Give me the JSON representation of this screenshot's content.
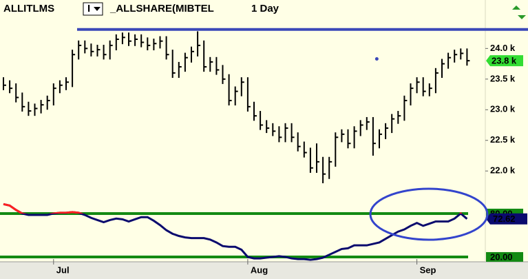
{
  "header": {
    "symbol": "ALLITLMS",
    "button": "I",
    "instrument": "_ALLSHARE(MIBTEL",
    "period": "1 Day"
  },
  "chart_data": [
    {
      "type": "hlc",
      "color": "#000000",
      "categories": [
        null,
        null,
        null,
        null,
        null,
        null,
        null,
        null,
        "Jul",
        null,
        null,
        null,
        null,
        null,
        null,
        null,
        null,
        null,
        null,
        null,
        null,
        null,
        null,
        null,
        null,
        null,
        null,
        null,
        null,
        null,
        null,
        null,
        null,
        null,
        null,
        null,
        null,
        null,
        null,
        "Aug",
        null,
        null,
        null,
        null,
        null,
        null,
        null,
        null,
        null,
        null,
        null,
        null,
        null,
        null,
        null,
        null,
        null,
        null,
        null,
        null,
        null,
        null,
        null,
        null,
        null,
        null,
        "Sep",
        null,
        null,
        null,
        null,
        null,
        null,
        null,
        null
      ],
      "high": [
        23.53,
        23.48,
        23.43,
        23.28,
        23.13,
        23.1,
        23.16,
        23.23,
        23.43,
        23.48,
        23.53,
        23.98,
        24.13,
        24.13,
        24.08,
        24.06,
        24.06,
        24.13,
        24.23,
        24.26,
        24.26,
        24.23,
        24.23,
        24.18,
        24.16,
        24.2,
        24.2,
        23.98,
        23.78,
        23.93,
        24.03,
        24.28,
        24.13,
        23.86,
        23.86,
        23.73,
        23.58,
        23.38,
        23.53,
        23.53,
        23.13,
        22.98,
        22.83,
        22.78,
        22.73,
        22.78,
        22.78,
        22.63,
        22.48,
        22.38,
        22.45,
        22.23,
        22.23,
        22.63,
        22.68,
        22.68,
        22.73,
        22.83,
        22.88,
        22.88,
        22.68,
        22.78,
        22.93,
        22.98,
        23.23,
        23.43,
        23.53,
        23.53,
        23.43,
        23.68,
        23.83,
        23.93,
        23.98,
        24.0,
        24.0
      ],
      "low": [
        23.32,
        23.27,
        23.12,
        22.97,
        22.9,
        22.9,
        22.94,
        23.0,
        23.07,
        23.27,
        23.32,
        23.37,
        23.82,
        23.92,
        23.87,
        23.87,
        23.82,
        23.82,
        23.97,
        24.07,
        24.04,
        24.04,
        24.02,
        23.97,
        23.97,
        24.0,
        23.82,
        23.52,
        23.52,
        23.62,
        23.77,
        23.87,
        23.62,
        23.62,
        23.57,
        23.42,
        23.07,
        23.07,
        23.22,
        22.97,
        22.82,
        22.67,
        22.62,
        22.57,
        22.47,
        22.47,
        22.47,
        22.32,
        22.22,
        21.97,
        21.97,
        21.8,
        21.87,
        22.07,
        22.47,
        22.37,
        22.37,
        22.57,
        22.67,
        22.25,
        22.37,
        22.52,
        22.62,
        22.77,
        22.82,
        23.07,
        23.27,
        23.22,
        23.22,
        23.27,
        23.52,
        23.67,
        23.77,
        23.82,
        23.72
      ],
      "close": [
        23.4,
        23.35,
        23.2,
        23.05,
        22.98,
        23.02,
        23.08,
        23.15,
        23.35,
        23.4,
        23.45,
        23.9,
        24.05,
        24.0,
        23.95,
        23.98,
        23.9,
        24.05,
        24.15,
        24.18,
        24.12,
        24.15,
        24.1,
        24.05,
        24.08,
        24.12,
        23.9,
        23.6,
        23.7,
        23.85,
        23.95,
        24.05,
        23.7,
        23.78,
        23.65,
        23.5,
        23.15,
        23.3,
        23.45,
        23.05,
        22.9,
        22.75,
        22.7,
        22.65,
        22.55,
        22.7,
        22.55,
        22.4,
        22.3,
        22.05,
        22.15,
        21.95,
        22.15,
        22.55,
        22.6,
        22.45,
        22.65,
        22.75,
        22.8,
        22.45,
        22.6,
        22.7,
        22.85,
        22.9,
        23.15,
        23.35,
        23.45,
        23.3,
        23.35,
        23.6,
        23.75,
        23.85,
        23.9,
        23.92,
        23.8
      ],
      "ylim": [
        21.53,
        24.51
      ],
      "yticks": [
        {
          "value": 24,
          "label": "24.0 k"
        },
        {
          "value": 23.5,
          "label": "23.5 k"
        },
        {
          "value": 23,
          "label": "23.0 k"
        },
        {
          "value": 22.5,
          "label": "22.5 k"
        },
        {
          "value": 22,
          "label": "22.0 k"
        }
      ],
      "last_label": {
        "value": 23.8,
        "label": "23.8 k",
        "color": "#33dd33"
      },
      "hline": {
        "value": 24.31,
        "color": "#3b48b8"
      },
      "marker": {
        "x": 59.6,
        "y": 23.83,
        "color": "#3b48b8"
      }
    },
    {
      "type": "line",
      "color": "#0a0a6e",
      "high_color": "#ff2020",
      "values": [
        93,
        91,
        85,
        80,
        78,
        78,
        78,
        78,
        80,
        81,
        81,
        82,
        81,
        78,
        74,
        71,
        68,
        71,
        73,
        72,
        69,
        72,
        75,
        75,
        70,
        64,
        57,
        52,
        49,
        47,
        46,
        46,
        46,
        44,
        40,
        35,
        34,
        34,
        30,
        20,
        18,
        18,
        19,
        20,
        21,
        20,
        18,
        17,
        17,
        16,
        17,
        19,
        23,
        27,
        31,
        32,
        36,
        36,
        36,
        38,
        40,
        45,
        50,
        55,
        58,
        63,
        67,
        63,
        66,
        69,
        69,
        69,
        73,
        80,
        72.62
      ],
      "ylim": [
        13.3,
        99
      ],
      "yticks": [
        {
          "value": 80,
          "label": "80.00"
        },
        {
          "value": 20,
          "label": "20.00"
        }
      ],
      "level_color": "#138a13",
      "last_label": {
        "value": 72.62,
        "label": "72.62",
        "color": "#0a0a6e"
      }
    }
  ]
}
